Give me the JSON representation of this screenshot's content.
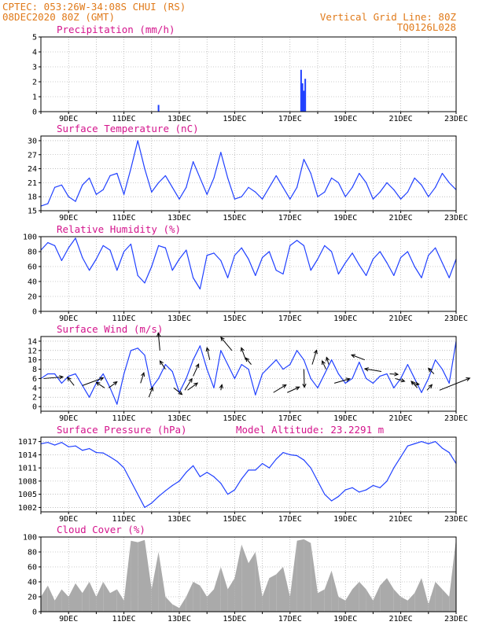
{
  "header": {
    "line1_left": "CPTEC:  053:26W-34:08S  CHUI (RS)",
    "line2_left": "08DEC2020 80Z (GMT)",
    "line1_right": "Vertical Grid Line: 80Z",
    "line2_right": "TQ0126L028"
  },
  "colors": {
    "header": "#e07a1a",
    "title": "#d4148c",
    "line": "#2040ff",
    "cloud": "#aaaaaa",
    "bar": "#2040ff"
  },
  "x_labels": [
    "9DEC",
    "11DEC",
    "13DEC",
    "15DEC",
    "17DEC",
    "19DEC",
    "21DEC",
    "23DEC"
  ],
  "model_altitude": "Model Altitude: 23.2291 m",
  "chart_data": [
    {
      "id": "precip",
      "type": "bar",
      "title": "Precipitation (mm/h)",
      "xlim": [
        8.0,
        23.0
      ],
      "ylim": [
        0,
        5
      ],
      "yticks": [
        "0",
        "1",
        "2",
        "3",
        "4",
        "5"
      ],
      "x": [
        12.25,
        17.4,
        17.45,
        17.5,
        17.55
      ],
      "values": [
        0.45,
        2.8,
        1.9,
        1.4,
        2.2
      ]
    },
    {
      "id": "temp",
      "type": "line",
      "title": "Surface Temperature (nC)",
      "xlim": [
        8.0,
        23.0
      ],
      "ylim": [
        15,
        31
      ],
      "yticks": [
        "15",
        "18",
        "21",
        "24",
        "27",
        "30"
      ],
      "x": [
        8.0,
        8.25,
        8.5,
        8.75,
        9.0,
        9.25,
        9.5,
        9.75,
        10.0,
        10.25,
        10.5,
        10.75,
        11.0,
        11.25,
        11.5,
        11.75,
        12.0,
        12.25,
        12.5,
        12.75,
        13.0,
        13.25,
        13.5,
        13.75,
        14.0,
        14.25,
        14.5,
        14.75,
        15.0,
        15.25,
        15.5,
        15.75,
        16.0,
        16.25,
        16.5,
        16.75,
        17.0,
        17.25,
        17.5,
        17.75,
        18.0,
        18.25,
        18.5,
        18.75,
        19.0,
        19.25,
        19.5,
        19.75,
        20.0,
        20.25,
        20.5,
        20.75,
        21.0,
        21.25,
        21.5,
        21.75,
        22.0,
        22.25,
        22.5,
        22.75,
        23.0
      ],
      "values": [
        16.0,
        16.5,
        20.0,
        20.5,
        18.0,
        17.0,
        20.5,
        22.0,
        18.5,
        19.5,
        22.5,
        23.0,
        18.5,
        24.0,
        30.0,
        24.0,
        19.0,
        21.0,
        22.5,
        20.0,
        17.5,
        20.0,
        25.5,
        22.0,
        18.5,
        22.0,
        27.5,
        22.0,
        17.5,
        18.0,
        20.0,
        19.0,
        17.5,
        20.0,
        22.5,
        20.0,
        17.5,
        20.0,
        26.0,
        23.0,
        18.0,
        19.0,
        22.0,
        21.0,
        18.0,
        20.0,
        23.0,
        21.0,
        17.5,
        19.0,
        21.0,
        19.5,
        17.5,
        19.0,
        22.0,
        20.5,
        18.0,
        20.0,
        23.0,
        21.0,
        19.5
      ]
    },
    {
      "id": "rh",
      "type": "line",
      "title": "Relative Humidity (%)",
      "xlim": [
        8.0,
        23.0
      ],
      "ylim": [
        0,
        100
      ],
      "yticks": [
        "0",
        "20",
        "40",
        "60",
        "80",
        "100"
      ],
      "x": [
        8.0,
        8.25,
        8.5,
        8.75,
        9.0,
        9.25,
        9.5,
        9.75,
        10.0,
        10.25,
        10.5,
        10.75,
        11.0,
        11.25,
        11.5,
        11.75,
        12.0,
        12.25,
        12.5,
        12.75,
        13.0,
        13.25,
        13.5,
        13.75,
        14.0,
        14.25,
        14.5,
        14.75,
        15.0,
        15.25,
        15.5,
        15.75,
        16.0,
        16.25,
        16.5,
        16.75,
        17.0,
        17.25,
        17.5,
        17.75,
        18.0,
        18.25,
        18.5,
        18.75,
        19.0,
        19.25,
        19.5,
        19.75,
        20.0,
        20.25,
        20.5,
        20.75,
        21.0,
        21.25,
        21.5,
        21.75,
        22.0,
        22.25,
        22.5,
        22.75,
        23.0
      ],
      "values": [
        82,
        92,
        88,
        68,
        85,
        98,
        72,
        55,
        70,
        88,
        82,
        55,
        80,
        90,
        48,
        38,
        60,
        88,
        85,
        55,
        70,
        82,
        45,
        30,
        75,
        78,
        68,
        45,
        75,
        85,
        70,
        48,
        72,
        80,
        55,
        50,
        88,
        95,
        88,
        55,
        70,
        88,
        80,
        50,
        65,
        78,
        62,
        48,
        70,
        80,
        65,
        48,
        72,
        80,
        60,
        45,
        75,
        85,
        65,
        45,
        70
      ]
    },
    {
      "id": "wind",
      "type": "line",
      "title": "Surface Wind (m/s)",
      "xlim": [
        8.0,
        23.0
      ],
      "ylim": [
        -1,
        15
      ],
      "yticks": [
        "0",
        "2",
        "4",
        "6",
        "8",
        "10",
        "12",
        "14"
      ],
      "x": [
        8.0,
        8.25,
        8.5,
        8.75,
        9.0,
        9.25,
        9.5,
        9.75,
        10.0,
        10.25,
        10.5,
        10.75,
        11.0,
        11.25,
        11.5,
        11.75,
        12.0,
        12.25,
        12.5,
        12.75,
        13.0,
        13.25,
        13.5,
        13.75,
        14.0,
        14.25,
        14.5,
        14.75,
        15.0,
        15.25,
        15.5,
        15.75,
        16.0,
        16.25,
        16.5,
        16.75,
        17.0,
        17.25,
        17.5,
        17.75,
        18.0,
        18.25,
        18.5,
        18.75,
        19.0,
        19.25,
        19.5,
        19.75,
        20.0,
        20.25,
        20.5,
        20.75,
        21.0,
        21.25,
        21.5,
        21.75,
        22.0,
        22.25,
        22.5,
        22.75,
        23.0
      ],
      "values": [
        6.0,
        7.0,
        7.0,
        5.0,
        6.5,
        7.0,
        4.5,
        2.0,
        5.0,
        7.0,
        4.0,
        0.5,
        7.0,
        12.0,
        12.5,
        11.0,
        4.0,
        6.0,
        9.0,
        7.5,
        3.0,
        6.0,
        10.0,
        13.0,
        8.0,
        4.0,
        12.0,
        9.0,
        6.0,
        9.0,
        8.0,
        2.5,
        7.0,
        8.5,
        10.0,
        8.0,
        9.0,
        12.0,
        10.0,
        6.0,
        4.0,
        7.0,
        10.0,
        7.0,
        5.0,
        6.0,
        9.5,
        6.0,
        5.0,
        6.5,
        7.0,
        4.0,
        6.0,
        9.0,
        6.0,
        3.0,
        6.0,
        10.0,
        8.0,
        5.0,
        14.0
      ],
      "arrows": [
        {
          "x": 8.1,
          "speed": 6,
          "u": 3.5,
          "v": 0.3
        },
        {
          "x": 9.2,
          "speed": 4.5,
          "u": -1.2,
          "v": 1.5
        },
        {
          "x": 9.5,
          "speed": 4.5,
          "u": 3.8,
          "v": 1.4
        },
        {
          "x": 10.3,
          "speed": 4,
          "u": -1.5,
          "v": 1.0
        },
        {
          "x": 10.45,
          "speed": 4,
          "u": 1.5,
          "v": 1.1
        },
        {
          "x": 11.6,
          "speed": 5,
          "u": 0.6,
          "v": 1.9
        },
        {
          "x": 11.9,
          "speed": 2,
          "u": 0.7,
          "v": 1.8
        },
        {
          "x": 12.3,
          "speed": 12,
          "u": -0.3,
          "v": 3.2
        },
        {
          "x": 12.5,
          "speed": 8,
          "u": -1.0,
          "v": 1.5
        },
        {
          "x": 12.8,
          "speed": 4,
          "u": 1.5,
          "v": -1.2
        },
        {
          "x": 13.2,
          "speed": 3.5,
          "u": 1.3,
          "v": 2.1
        },
        {
          "x": 13.3,
          "speed": 3.5,
          "u": 1.8,
          "v": 1.3
        },
        {
          "x": 13.5,
          "speed": 6.5,
          "u": 1.0,
          "v": 2.2
        },
        {
          "x": 14.1,
          "speed": 10,
          "u": -0.5,
          "v": 2.2
        },
        {
          "x": 14.5,
          "speed": 3.5,
          "u": 0.2,
          "v": 1.0
        },
        {
          "x": 14.9,
          "speed": 12,
          "u": -2.0,
          "v": 2.4
        },
        {
          "x": 15.4,
          "speed": 10,
          "u": -0.8,
          "v": 2.2
        },
        {
          "x": 15.6,
          "speed": 9,
          "u": -1.0,
          "v": 1.2
        },
        {
          "x": 16.4,
          "speed": 3,
          "u": 2.3,
          "v": 1.4
        },
        {
          "x": 16.9,
          "speed": 3,
          "u": 2.2,
          "v": 1.0
        },
        {
          "x": 17.5,
          "speed": 8,
          "u": 0.1,
          "v": -3.3
        },
        {
          "x": 17.8,
          "speed": 9,
          "u": 0.8,
          "v": 2.6
        },
        {
          "x": 18.3,
          "speed": 8,
          "u": -0.7,
          "v": 1.5
        },
        {
          "x": 18.4,
          "speed": 9,
          "u": -0.4,
          "v": 1.3
        },
        {
          "x": 18.6,
          "speed": 5,
          "u": 2.8,
          "v": 0.8
        },
        {
          "x": 19.7,
          "speed": 10,
          "u": -2.4,
          "v": 0.9
        },
        {
          "x": 20.3,
          "speed": 7.5,
          "u": -3.0,
          "v": 0.5
        },
        {
          "x": 20.6,
          "speed": 7,
          "u": 1.5,
          "v": -0.1
        },
        {
          "x": 20.8,
          "speed": 6,
          "u": 1.7,
          "v": -0.5
        },
        {
          "x": 21.4,
          "speed": 5,
          "u": 1.3,
          "v": -0.2
        },
        {
          "x": 21.6,
          "speed": 4,
          "u": -1.1,
          "v": 1.2
        },
        {
          "x": 21.95,
          "speed": 3.5,
          "u": 0.9,
          "v": 1.0
        },
        {
          "x": 22.2,
          "speed": 7,
          "u": -1.0,
          "v": 1.0
        },
        {
          "x": 22.4,
          "speed": 3.5,
          "u": 5.5,
          "v": 2.2
        }
      ]
    },
    {
      "id": "pres",
      "type": "line",
      "title": "Surface Pressure (hPa)",
      "xlim": [
        8.0,
        23.0
      ],
      "ylim": [
        1001,
        1018
      ],
      "yticks": [
        "1002",
        "1005",
        "1008",
        "1011",
        "1014",
        "1017"
      ],
      "x": [
        8.0,
        8.25,
        8.5,
        8.75,
        9.0,
        9.25,
        9.5,
        9.75,
        10.0,
        10.25,
        10.5,
        10.75,
        11.0,
        11.25,
        11.5,
        11.75,
        12.0,
        12.25,
        12.5,
        12.75,
        13.0,
        13.25,
        13.5,
        13.75,
        14.0,
        14.25,
        14.5,
        14.75,
        15.0,
        15.25,
        15.5,
        15.75,
        16.0,
        16.25,
        16.5,
        16.75,
        17.0,
        17.25,
        17.5,
        17.75,
        18.0,
        18.25,
        18.5,
        18.75,
        19.0,
        19.25,
        19.5,
        19.75,
        20.0,
        20.25,
        20.5,
        20.75,
        21.0,
        21.25,
        21.5,
        21.75,
        22.0,
        22.25,
        22.5,
        22.75,
        23.0
      ],
      "values": [
        1016.5,
        1016.8,
        1016.2,
        1016.8,
        1015.8,
        1016.0,
        1015.0,
        1015.4,
        1014.5,
        1014.4,
        1013.5,
        1012.5,
        1011.0,
        1008.0,
        1005.0,
        1002.0,
        1003.0,
        1004.5,
        1005.8,
        1007.0,
        1008.0,
        1010.0,
        1011.5,
        1009.0,
        1010.0,
        1009.0,
        1007.5,
        1005.0,
        1006.0,
        1008.5,
        1010.5,
        1010.5,
        1012.0,
        1011.0,
        1013.0,
        1014.5,
        1014.0,
        1013.8,
        1012.8,
        1011.0,
        1008.0,
        1005.0,
        1003.5,
        1004.5,
        1006.0,
        1006.5,
        1005.5,
        1006.0,
        1007.0,
        1006.5,
        1008.0,
        1011.0,
        1013.5,
        1016.0,
        1016.5,
        1017.0,
        1016.5,
        1017.0,
        1015.5,
        1014.5,
        1012.0
      ]
    },
    {
      "id": "cloud",
      "type": "area",
      "title": "Cloud Cover (%)",
      "xlim": [
        8.0,
        23.0
      ],
      "ylim": [
        0,
        100
      ],
      "yticks": [
        "0",
        "20",
        "40",
        "60",
        "80",
        "100"
      ],
      "x": [
        8.0,
        8.25,
        8.5,
        8.75,
        9.0,
        9.25,
        9.5,
        9.75,
        10.0,
        10.25,
        10.5,
        10.75,
        11.0,
        11.25,
        11.5,
        11.75,
        12.0,
        12.25,
        12.5,
        12.75,
        13.0,
        13.25,
        13.5,
        13.75,
        14.0,
        14.25,
        14.5,
        14.75,
        15.0,
        15.25,
        15.5,
        15.75,
        16.0,
        16.25,
        16.5,
        16.75,
        17.0,
        17.25,
        17.5,
        17.75,
        18.0,
        18.25,
        18.5,
        18.75,
        19.0,
        19.25,
        19.5,
        19.75,
        20.0,
        20.25,
        20.5,
        20.75,
        21.0,
        21.25,
        21.5,
        21.75,
        22.0,
        22.25,
        22.5,
        22.75,
        23.0
      ],
      "values": [
        20,
        35,
        15,
        30,
        20,
        38,
        25,
        40,
        20,
        40,
        25,
        30,
        15,
        95,
        93,
        96,
        30,
        80,
        20,
        10,
        5,
        20,
        40,
        35,
        20,
        30,
        60,
        30,
        45,
        90,
        65,
        80,
        20,
        45,
        50,
        60,
        20,
        95,
        97,
        92,
        25,
        30,
        55,
        20,
        15,
        30,
        40,
        30,
        15,
        35,
        45,
        30,
        20,
        15,
        25,
        45,
        10,
        40,
        30,
        20,
        98
      ]
    }
  ]
}
